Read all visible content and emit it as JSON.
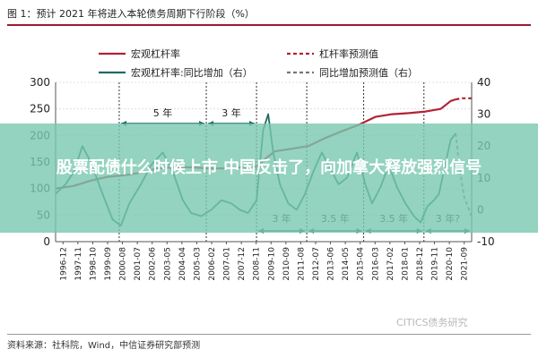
{
  "title": "图 1：预计 2021 年将进入本轮债务周期下行阶段（%）",
  "source": "资料来源：社科院，Wind，中信证券研究部预测",
  "watermark": "CITICS债务研究",
  "overlay_text": "股票配债什么时候上市 中国反击了，向加拿大释放强烈信号",
  "colors": {
    "leverage": "#b22234",
    "yoy": "#1f6b5e",
    "forecast_yoy": "#777777",
    "arrow": "#1f6b5e",
    "accent": "#9b1b2f",
    "banner": "#78c8af"
  },
  "chart_data": {
    "type": "line",
    "legend_position": "top",
    "legend": [
      {
        "label": "宏观杠杆率",
        "style": "solid",
        "color": "#b22234"
      },
      {
        "label": "杠杆率预测值",
        "style": "dashed",
        "color": "#b22234"
      },
      {
        "label": "宏观杠杆率:同比增加（右）",
        "style": "solid",
        "color": "#1f6b5e"
      },
      {
        "label": "同比增加预测值（右）",
        "style": "dashed",
        "color": "#777777"
      }
    ],
    "x_ticks": [
      "1996-12",
      "1997-11",
      "1998-10",
      "1999-09",
      "2000-08",
      "2001-07",
      "2002-06",
      "2003-05",
      "2004-04",
      "2005-03",
      "2006-02",
      "2007-01",
      "2007-12",
      "2008-11",
      "2009-10",
      "2010-09",
      "2011-08",
      "2012-07",
      "2013-06",
      "2014-05",
      "2015-04",
      "2016-03",
      "2017-02",
      "2018-01",
      "2018-12",
      "2019-11",
      "2020-10",
      "2021-09"
    ],
    "y_left": {
      "range": [
        0,
        300
      ],
      "ticks": [
        0,
        50,
        100,
        150,
        200,
        250,
        300
      ]
    },
    "y_right": {
      "range": [
        -10,
        40
      ],
      "ticks": [
        -10,
        0,
        10,
        20,
        30,
        40
      ]
    },
    "series": [
      {
        "name": "宏观杠杆率",
        "axis": "left",
        "style": "solid",
        "points": [
          [
            1996.9,
            100
          ],
          [
            1998,
            105
          ],
          [
            1999,
            115
          ],
          [
            2000,
            122
          ],
          [
            2001,
            125
          ],
          [
            2002,
            130
          ],
          [
            2003,
            138
          ],
          [
            2004,
            140
          ],
          [
            2005,
            140
          ],
          [
            2006,
            138
          ],
          [
            2007,
            138
          ],
          [
            2008,
            140
          ],
          [
            2008.9,
            141
          ],
          [
            2009.5,
            158
          ],
          [
            2010,
            170
          ],
          [
            2011,
            175
          ],
          [
            2012,
            180
          ],
          [
            2013,
            195
          ],
          [
            2014,
            208
          ],
          [
            2015,
            220
          ],
          [
            2016,
            235
          ],
          [
            2017,
            240
          ],
          [
            2018,
            242
          ],
          [
            2019,
            245
          ],
          [
            2019.9,
            250
          ],
          [
            2020.5,
            265
          ],
          [
            2020.8,
            268
          ]
        ]
      },
      {
        "name": "杠杆率预测值",
        "axis": "left",
        "style": "dashed",
        "points": [
          [
            2020.8,
            268
          ],
          [
            2021.2,
            270
          ],
          [
            2021.75,
            270
          ]
        ]
      },
      {
        "name": "宏观杠杆率:同比增加（右）",
        "axis": "right",
        "style": "solid",
        "points": [
          [
            1996.9,
            5
          ],
          [
            1997.5,
            8
          ],
          [
            1998,
            12
          ],
          [
            1998.5,
            20
          ],
          [
            1999,
            15
          ],
          [
            1999.7,
            5
          ],
          [
            2000.3,
            -3
          ],
          [
            2000.8,
            -5
          ],
          [
            2001.3,
            2
          ],
          [
            2002,
            8
          ],
          [
            2002.6,
            14
          ],
          [
            2003.3,
            18
          ],
          [
            2003.9,
            12
          ],
          [
            2004.5,
            3
          ],
          [
            2005,
            -1
          ],
          [
            2005.6,
            -2
          ],
          [
            2006.2,
            0
          ],
          [
            2006.8,
            3
          ],
          [
            2007.4,
            2
          ],
          [
            2007.9,
            0
          ],
          [
            2008.4,
            -1
          ],
          [
            2008.9,
            3
          ],
          [
            2009.3,
            25
          ],
          [
            2009.6,
            30
          ],
          [
            2009.9,
            18
          ],
          [
            2010.3,
            8
          ],
          [
            2010.8,
            2
          ],
          [
            2011.3,
            0
          ],
          [
            2011.8,
            5
          ],
          [
            2012.3,
            12
          ],
          [
            2012.8,
            18
          ],
          [
            2013.3,
            13
          ],
          [
            2013.8,
            8
          ],
          [
            2014.3,
            10
          ],
          [
            2014.9,
            18
          ],
          [
            2015.4,
            8
          ],
          [
            2015.8,
            2
          ],
          [
            2016.3,
            7
          ],
          [
            2016.8,
            14
          ],
          [
            2017.3,
            7
          ],
          [
            2017.8,
            2
          ],
          [
            2018.3,
            -2
          ],
          [
            2018.7,
            -4
          ],
          [
            2019.1,
            1
          ],
          [
            2019.5,
            3
          ],
          [
            2019.8,
            5
          ],
          [
            2020.2,
            15
          ],
          [
            2020.5,
            22
          ],
          [
            2020.8,
            24
          ]
        ]
      },
      {
        "name": "同比增加预测值（右）",
        "axis": "right",
        "style": "dashed",
        "points": [
          [
            2020.8,
            24
          ],
          [
            2021,
            14
          ],
          [
            2021.3,
            4
          ],
          [
            2021.75,
            -2
          ]
        ]
      }
    ],
    "cycle_annotations": [
      {
        "label": "5 年",
        "from": 2000.7,
        "to": 2005.9,
        "position": "top"
      },
      {
        "label": "3 年",
        "from": 2005.9,
        "to": 2008.9,
        "position": "top"
      },
      {
        "label": "3 年",
        "from": 2008.9,
        "to": 2011.9,
        "position": "bottom"
      },
      {
        "label": "3.5 年",
        "from": 2011.9,
        "to": 2015.3,
        "position": "bottom"
      },
      {
        "label": "3.5 年",
        "from": 2015.3,
        "to": 2018.9,
        "position": "bottom"
      },
      {
        "label": "3 年?",
        "from": 2018.9,
        "to": 2021.75,
        "position": "bottom"
      }
    ],
    "vertical_markers": [
      2000.7,
      2005.9,
      2008.9,
      2011.9,
      2015.3,
      2018.9
    ]
  }
}
